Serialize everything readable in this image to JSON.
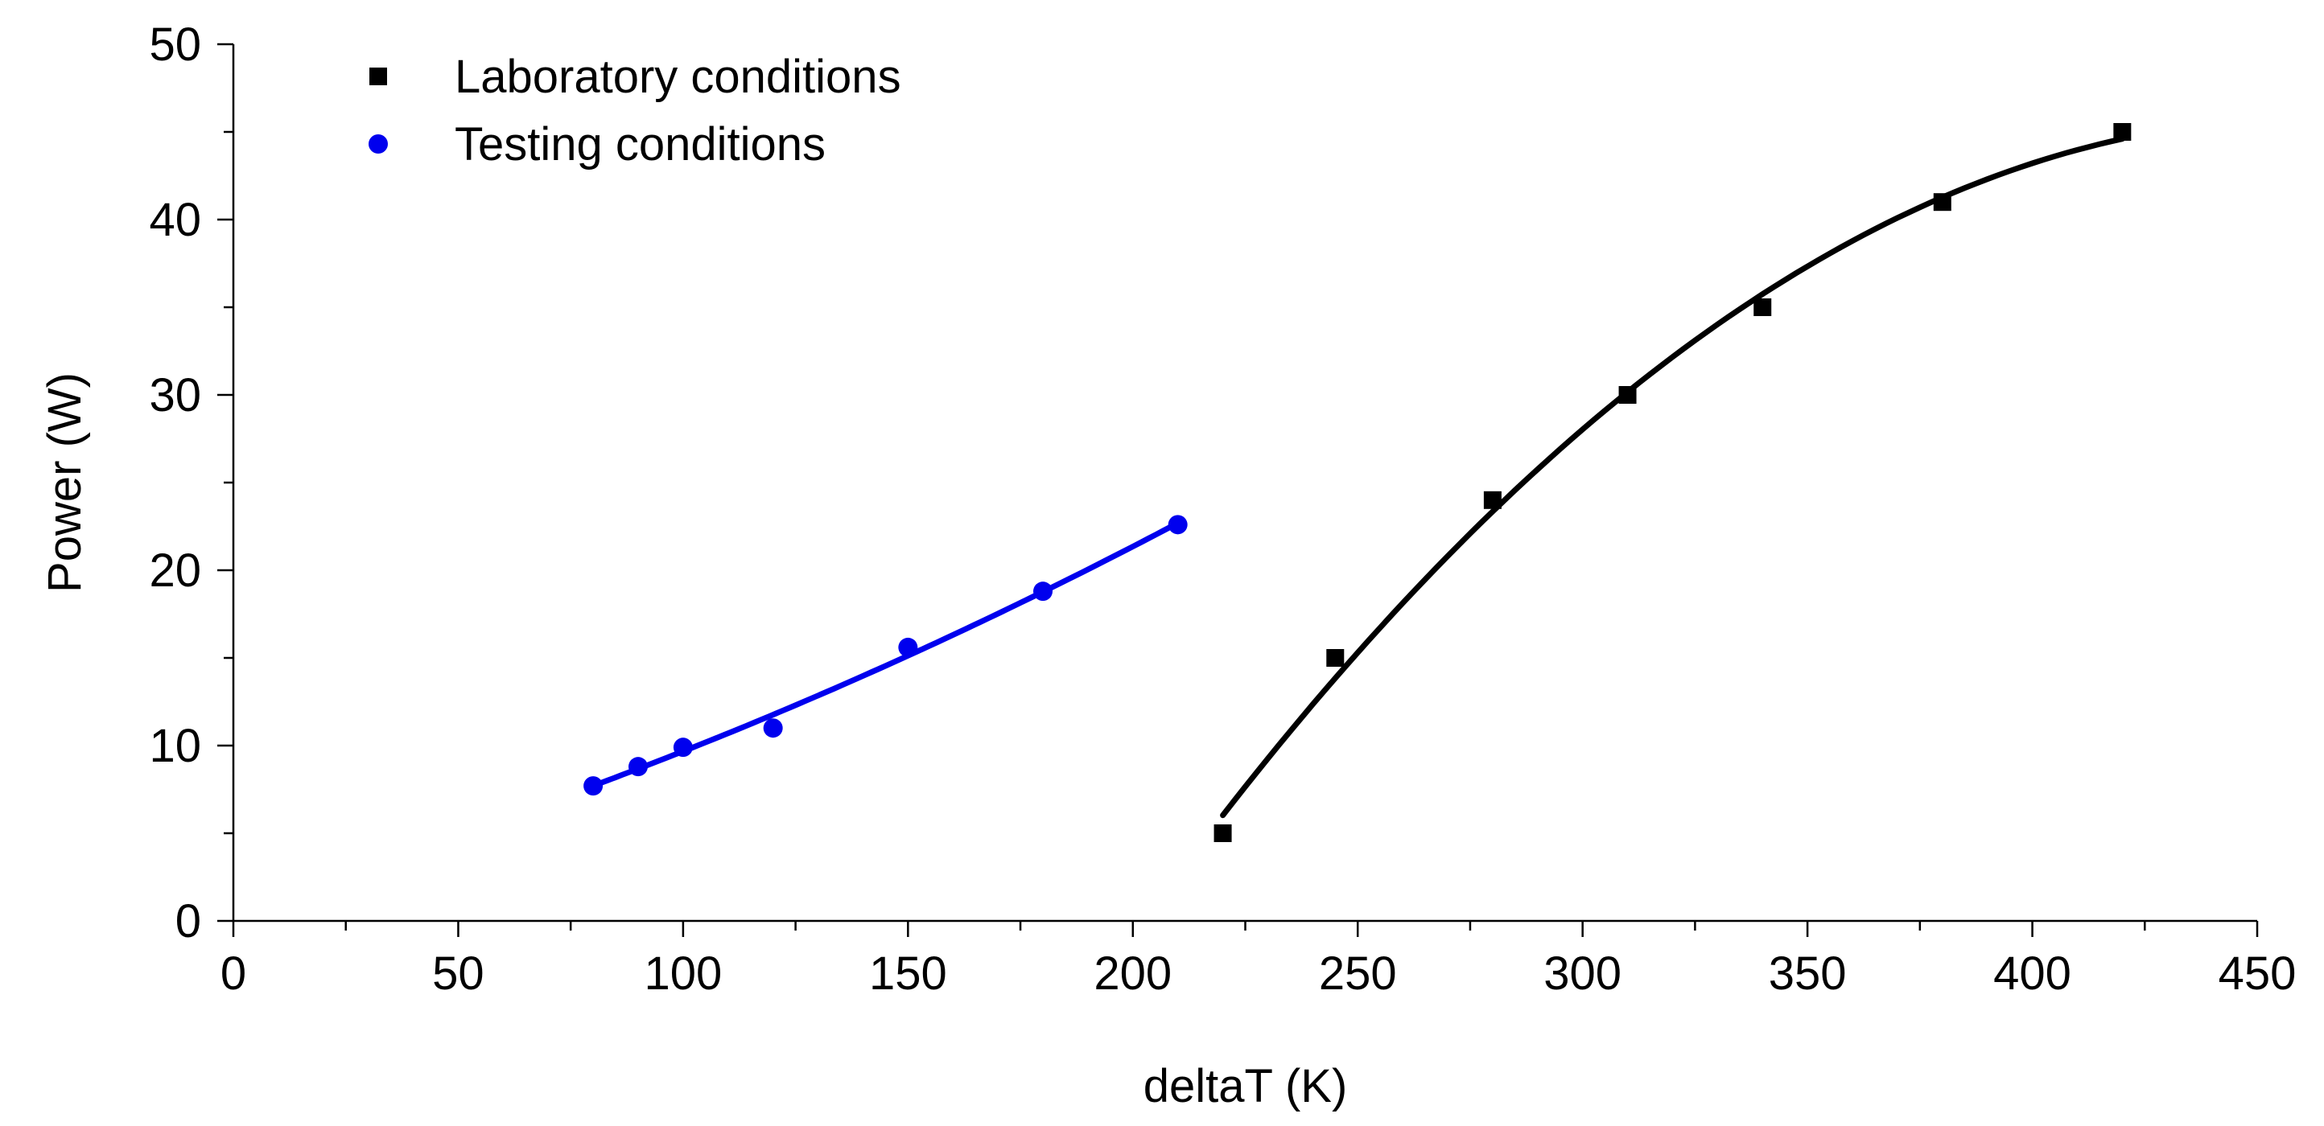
{
  "chart_data": {
    "type": "scatter",
    "title": "",
    "xlabel": "deltaT (K)",
    "ylabel": "Power (W)",
    "xlim": [
      0,
      450
    ],
    "ylim": [
      0,
      50
    ],
    "xticks": [
      0,
      50,
      100,
      150,
      200,
      250,
      300,
      350,
      400,
      450
    ],
    "xtick_labels": [
      "0",
      "50",
      "100",
      "150",
      "200",
      "250",
      "300",
      "350",
      "400",
      "450"
    ],
    "yticks": [
      0,
      10,
      20,
      30,
      40,
      50
    ],
    "ytick_labels": [
      "0",
      "10",
      "20",
      "30",
      "40",
      "50"
    ],
    "x_minor_step": 25,
    "y_minor_step": 5,
    "grid": false,
    "legend_position": "top-left",
    "series": [
      {
        "name": "Laboratory conditions",
        "marker": "square",
        "color": "#000000",
        "x": [
          220,
          245,
          280,
          310,
          340,
          380,
          420
        ],
        "y": [
          5,
          15,
          24,
          30,
          35,
          41,
          45
        ],
        "fit": {
          "type": "quadratic",
          "x_range": [
            220,
            420
          ]
        }
      },
      {
        "name": "Testing conditions",
        "marker": "circle",
        "color": "#0000ee",
        "x": [
          80,
          90,
          100,
          120,
          150,
          180,
          210
        ],
        "y": [
          7.7,
          8.8,
          9.9,
          11,
          15.6,
          18.8,
          22.6
        ],
        "fit": {
          "type": "quadratic",
          "x_range": [
            80,
            210
          ]
        }
      }
    ]
  }
}
